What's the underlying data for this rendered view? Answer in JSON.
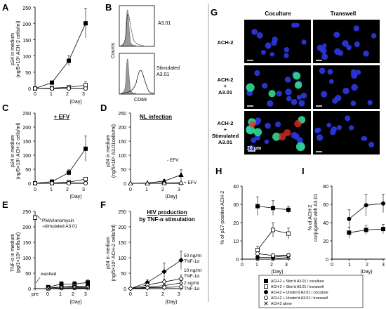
{
  "panels": {
    "A": {
      "label": "A",
      "ylabel": [
        "p24 in medium",
        "(ng/5×10⁵ ACH-2 cells/ml)"
      ],
      "xlabel": "(Day)",
      "yticks": [
        "0",
        "50",
        "100",
        "150",
        "200",
        "250"
      ],
      "xticks": [
        "0",
        "1",
        "2",
        "3"
      ]
    },
    "B": {
      "label": "B",
      "ylabel": "Counts",
      "xlabel": "CD69",
      "top_label": "A3.01",
      "bottom_label": [
        "Stimulated",
        "A3.01"
      ]
    },
    "C": {
      "label": "C",
      "title": "+ EFV",
      "ylabel": [
        "p24 in medium",
        "(ng/5×10⁵ ACH-2 cells/ml)"
      ],
      "xlabel": "(Day)",
      "yticks": [
        "0",
        "50",
        "100",
        "150",
        "200",
        "250"
      ],
      "xticks": [
        "0",
        "1",
        "2",
        "3"
      ]
    },
    "D": {
      "label": "D",
      "title": "NL infection",
      "ylabel": [
        "p24 in medium",
        "(ng/5×10⁵ A3.01cells/ml)"
      ],
      "xlabel": "(Day)",
      "yticks": [
        "0",
        "50",
        "100",
        "150",
        "200",
        "250"
      ],
      "xticks": [
        "0",
        "1",
        "2",
        "3"
      ],
      "ann_minus": "- EFV",
      "ann_plus": "+ EFV"
    },
    "E": {
      "label": "E",
      "ylabel": [
        "TNF-α in medium",
        "(pg/1×10⁶ cells/ml)"
      ],
      "xlabel": "(Day)",
      "yticks": [
        "0",
        "50",
        "100",
        "150",
        "200",
        "250"
      ],
      "xticks": [
        "pre",
        "0",
        "1",
        "2",
        "3"
      ],
      "ann_pma": [
        "PMA/Ionomycin",
        "-stimulated A3.01"
      ],
      "ann_washed": "washed"
    },
    "F": {
      "label": "F",
      "title": [
        "HIV production",
        "by TNF-α stimulation"
      ],
      "ylabel": [
        "p24 in medium",
        "(ng/5×10⁵ ACH-2 cells/ml)"
      ],
      "xlabel": "(Day)",
      "yticks": [
        "0",
        "50",
        "100",
        "150",
        "200",
        "250"
      ],
      "xticks": [
        "0",
        "1",
        "2",
        "3"
      ],
      "ann_50": [
        "50 ng/ml",
        "TNF-1α"
      ],
      "ann_10": [
        "10 ng/ml",
        "TNF-1α"
      ],
      "ann_2": [
        "2 ng/ml",
        "TNF-1α"
      ]
    },
    "G": {
      "label": "G",
      "col1": "Coculture",
      "col2": "Transwell",
      "row1": [
        "ACH-2"
      ],
      "row2": [
        "ACH-2",
        "+",
        "A3.01"
      ],
      "row3": [
        "ACH-2",
        "+",
        "Stimulated",
        "A3.01"
      ],
      "scale": "20 μm"
    },
    "H": {
      "label": "H",
      "ylabel": "% of p17-positive ACH-2",
      "xlabel": "(Day)",
      "yticks": [
        "0",
        "10",
        "20",
        "30",
        "40"
      ],
      "xticks": [
        "0",
        "1",
        "2",
        "3"
      ]
    },
    "I": {
      "label": "I",
      "ylabel": [
        "% of ACH-2",
        "conjugated with A3.01"
      ],
      "xlabel": "(Day)",
      "yticks": [
        "0",
        "20",
        "40",
        "60",
        "80"
      ],
      "xticks": [
        "0",
        "1",
        "2",
        "3"
      ]
    }
  },
  "legend": [
    "ACH-2 + Stim'd A3.01 / coculture",
    "ACH-2 + Stim'd A3.01 / transwell",
    "ACH-2 + Unstim'd A3.01 / coculture",
    "ACH-2 + Unstim'd A3.01 / transwell",
    "ACH-2 alone"
  ],
  "colors": {
    "nucleus": "#2a35d8",
    "green": "#30e8a0",
    "red": "#e83020",
    "background": "#000000"
  },
  "chart_data": [
    {
      "id": "A",
      "type": "line",
      "ylim": [
        0,
        250
      ],
      "xlim": [
        0,
        3
      ],
      "series": [
        {
          "marker": "filled-square",
          "x": [
            0,
            1,
            2,
            3
          ],
          "y": [
            0,
            18,
            85,
            200
          ],
          "err": [
            0,
            3,
            15,
            45
          ]
        },
        {
          "marker": "open-square",
          "x": [
            0,
            1,
            2,
            3
          ],
          "y": [
            0,
            1,
            4,
            10
          ],
          "err": [
            0,
            1,
            2,
            10
          ]
        },
        {
          "marker": "filled-circle",
          "x": [
            0,
            1,
            2,
            3
          ],
          "y": [
            0,
            0,
            0,
            0
          ],
          "err": [
            0,
            0,
            0,
            0
          ]
        },
        {
          "marker": "open-circle",
          "x": [
            0,
            1,
            2,
            3
          ],
          "y": [
            0,
            0,
            0,
            0
          ],
          "err": [
            0,
            0,
            0,
            0
          ]
        }
      ]
    },
    {
      "id": "C",
      "type": "line",
      "ylim": [
        0,
        250
      ],
      "xlim": [
        0,
        3
      ],
      "series": [
        {
          "marker": "filled-square",
          "x": [
            0,
            1,
            2,
            3
          ],
          "y": [
            0,
            6,
            38,
            123
          ],
          "err": [
            0,
            2,
            10,
            45
          ]
        },
        {
          "marker": "open-square",
          "x": [
            0,
            1,
            2,
            3
          ],
          "y": [
            0,
            1,
            4,
            15
          ],
          "err": [
            0,
            1,
            2,
            5
          ]
        },
        {
          "marker": "filled-circle",
          "x": [
            0,
            1,
            2,
            3
          ],
          "y": [
            0,
            0,
            1,
            1
          ],
          "err": [
            0,
            0,
            0,
            0
          ]
        },
        {
          "marker": "open-circle",
          "x": [
            0,
            1,
            2,
            3
          ],
          "y": [
            0,
            0,
            0,
            0
          ],
          "err": [
            0,
            0,
            0,
            0
          ]
        }
      ]
    },
    {
      "id": "D",
      "type": "line",
      "ylim": [
        0,
        250
      ],
      "xlim": [
        0,
        3
      ],
      "series": [
        {
          "marker": "filled-triangle",
          "x": [
            0,
            1,
            2,
            3
          ],
          "y": [
            0,
            1,
            8,
            30
          ],
          "err": [
            0,
            1,
            5,
            18
          ]
        },
        {
          "marker": "open-triangle",
          "x": [
            0,
            1,
            2,
            3
          ],
          "y": [
            0,
            0,
            1,
            2
          ],
          "err": [
            0,
            0,
            1,
            2
          ]
        }
      ]
    },
    {
      "id": "E",
      "type": "line",
      "ylim": [
        0,
        250
      ],
      "xcats": [
        "pre",
        "0",
        "1",
        "2",
        "3"
      ],
      "series": [
        {
          "marker": "filled-square",
          "x": [
            0,
            1,
            2,
            3,
            4
          ],
          "y": [
            230,
            5,
            15,
            15,
            20
          ],
          "err": [
            5,
            2,
            8,
            8,
            8
          ]
        },
        {
          "marker": "open-square",
          "x": [
            0,
            1,
            2,
            3,
            4
          ],
          "y": [
            230,
            2,
            5,
            8,
            8
          ],
          "err": [
            5,
            1,
            3,
            4,
            4
          ]
        },
        {
          "marker": "filled-circle",
          "x": [
            1,
            2,
            3,
            4
          ],
          "y": [
            2,
            5,
            6,
            8
          ],
          "err": [
            1,
            3,
            4,
            4
          ]
        },
        {
          "marker": "open-circle",
          "x": [
            1,
            2,
            3,
            4
          ],
          "y": [
            0,
            2,
            3,
            4
          ],
          "err": [
            0,
            1,
            2,
            2
          ]
        },
        {
          "marker": "cross",
          "x": [
            1,
            2,
            3,
            4
          ],
          "y": [
            0,
            1,
            1,
            2
          ],
          "err": [
            0,
            0,
            0,
            0
          ]
        }
      ]
    },
    {
      "id": "F",
      "type": "line",
      "ylim": [
        0,
        250
      ],
      "xlim": [
        0,
        3
      ],
      "series": [
        {
          "marker": "filled-diamond",
          "x": [
            0,
            1,
            2,
            3
          ],
          "y": [
            0,
            20,
            55,
            92
          ],
          "err": [
            0,
            8,
            28,
            30
          ]
        },
        {
          "marker": "open-diamond",
          "x": [
            0,
            1,
            2,
            3
          ],
          "y": [
            0,
            12,
            22,
            32
          ],
          "err": [
            0,
            6,
            8,
            12
          ]
        },
        {
          "marker": "open-diamond-small",
          "x": [
            0,
            1,
            2,
            3
          ],
          "y": [
            0,
            5,
            10,
            18
          ],
          "err": [
            0,
            3,
            4,
            8
          ]
        },
        {
          "marker": "open-diamond",
          "x": [
            0,
            1,
            2,
            3
          ],
          "y": [
            0,
            3,
            4,
            6
          ],
          "err": [
            0,
            2,
            2,
            4
          ]
        }
      ]
    },
    {
      "id": "H",
      "type": "line",
      "ylim": [
        0,
        40
      ],
      "xlim": [
        0,
        3
      ],
      "series": [
        {
          "marker": "filled-square",
          "x": [
            1,
            2,
            3
          ],
          "y": [
            29,
            28,
            27
          ],
          "err": [
            5,
            4,
            2
          ]
        },
        {
          "marker": "open-square",
          "x": [
            1,
            2,
            3
          ],
          "y": [
            5,
            16,
            14
          ],
          "err": [
            2,
            4,
            3
          ]
        },
        {
          "marker": "filled-circle",
          "x": [
            1,
            2,
            3
          ],
          "y": [
            1,
            1,
            2
          ],
          "err": [
            0.5,
            0.5,
            1
          ]
        },
        {
          "marker": "open-circle",
          "x": [
            1,
            2,
            3
          ],
          "y": [
            3,
            2,
            2
          ],
          "err": [
            1,
            1,
            1
          ]
        },
        {
          "marker": "cross",
          "x": [
            1,
            2,
            3
          ],
          "y": [
            0,
            0,
            1
          ],
          "err": [
            0,
            0,
            0
          ]
        }
      ]
    },
    {
      "id": "I",
      "type": "line",
      "ylim": [
        0,
        80
      ],
      "xlim": [
        0,
        3
      ],
      "series": [
        {
          "marker": "filled-square",
          "x": [
            1,
            2,
            3
          ],
          "y": [
            29,
            32,
            33
          ],
          "err": [
            6,
            5,
            5
          ]
        },
        {
          "marker": "filled-circle",
          "x": [
            1,
            2,
            3
          ],
          "y": [
            44,
            59,
            61
          ],
          "err": [
            10,
            12,
            10
          ]
        }
      ]
    }
  ]
}
